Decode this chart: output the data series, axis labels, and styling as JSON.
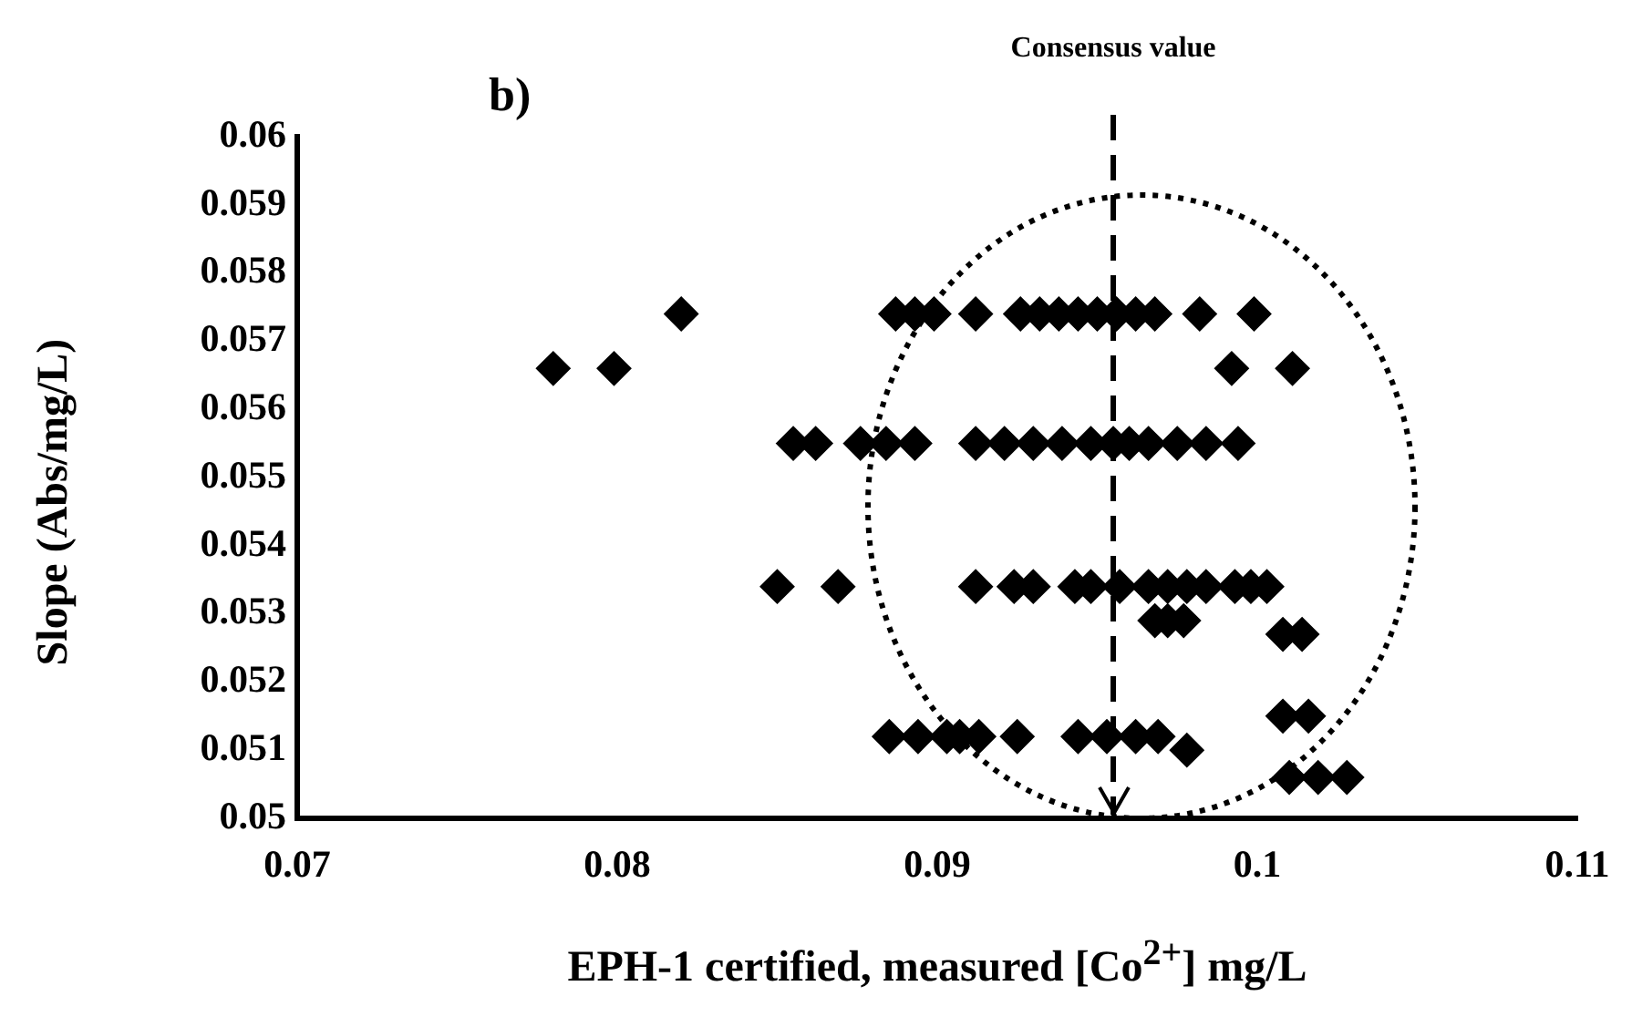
{
  "chart_data": {
    "type": "scatter",
    "xlabel": "EPH-1 certified, measured [Co$^{2+}$]   mg/L",
    "ylabel": "Slope   (Abs/mg/L)",
    "annotations": [
      "b)"
    ],
    "x": [
      0.082,
      0.0887,
      0.0893,
      0.0899,
      0.0912,
      0.0926,
      0.0932,
      0.0938,
      0.0944,
      0.095,
      0.0956,
      0.0962,
      0.0968,
      0.0982,
      0.0999,
      0.078,
      0.0799,
      0.0992,
      0.1011,
      0.0855,
      0.0862,
      0.0876,
      0.0884,
      0.0893,
      0.0912,
      0.0921,
      0.093,
      0.0939,
      0.0948,
      0.0955,
      0.096,
      0.0966,
      0.0975,
      0.0984,
      0.0994,
      0.085,
      0.0869,
      0.0912,
      0.0924,
      0.093,
      0.0943,
      0.0948,
      0.0957,
      0.0966,
      0.0972,
      0.0978,
      0.0984,
      0.0993,
      0.0998,
      0.1003,
      0.0968,
      0.0972,
      0.0977,
      0.1008,
      0.1014,
      0.0885,
      0.0894,
      0.0903,
      0.0907,
      0.0913,
      0.0925,
      0.0944,
      0.0953,
      0.0962,
      0.0969,
      0.0978,
      0.1008,
      0.1016,
      0.101,
      0.1019,
      0.1028
    ],
    "values": [
      0.0574,
      0.0574,
      0.0574,
      0.0574,
      0.0574,
      0.0574,
      0.0574,
      0.0574,
      0.0574,
      0.0574,
      0.0574,
      0.0574,
      0.0574,
      0.0574,
      0.0574,
      0.0566,
      0.0566,
      0.0566,
      0.0566,
      0.0555,
      0.0555,
      0.0555,
      0.0555,
      0.0555,
      0.0555,
      0.0555,
      0.0555,
      0.0555,
      0.0555,
      0.0555,
      0.0555,
      0.0555,
      0.0555,
      0.0555,
      0.0555,
      0.0534,
      0.0534,
      0.0534,
      0.0534,
      0.0534,
      0.0534,
      0.0534,
      0.0534,
      0.0534,
      0.0534,
      0.0534,
      0.0534,
      0.0534,
      0.0534,
      0.0534,
      0.0529,
      0.0529,
      0.0529,
      0.0527,
      0.0527,
      0.0512,
      0.0512,
      0.0512,
      0.0512,
      0.0512,
      0.0512,
      0.0512,
      0.0512,
      0.0512,
      0.0512,
      0.051,
      0.0515,
      0.0515,
      0.0506,
      0.0506,
      0.0506
    ],
    "color": "#000000",
    "marker": "diamond",
    "legend": false,
    "grid": false,
    "xlim": [
      0.07,
      0.11
    ],
    "xticks": [
      0.07,
      0.08,
      0.09,
      0.1,
      0.11
    ],
    "ylim": [
      0.05,
      0.06
    ],
    "yticks": [
      0.05,
      0.051,
      0.052,
      0.053,
      0.054,
      0.055,
      0.056,
      0.057,
      0.058,
      0.059,
      0.06
    ],
    "ref_lines": [
      {
        "axis": "x",
        "value": 0.0955,
        "label": "Consensus value",
        "line_style": "dashed",
        "color": "#000000"
      }
    ]
  }
}
